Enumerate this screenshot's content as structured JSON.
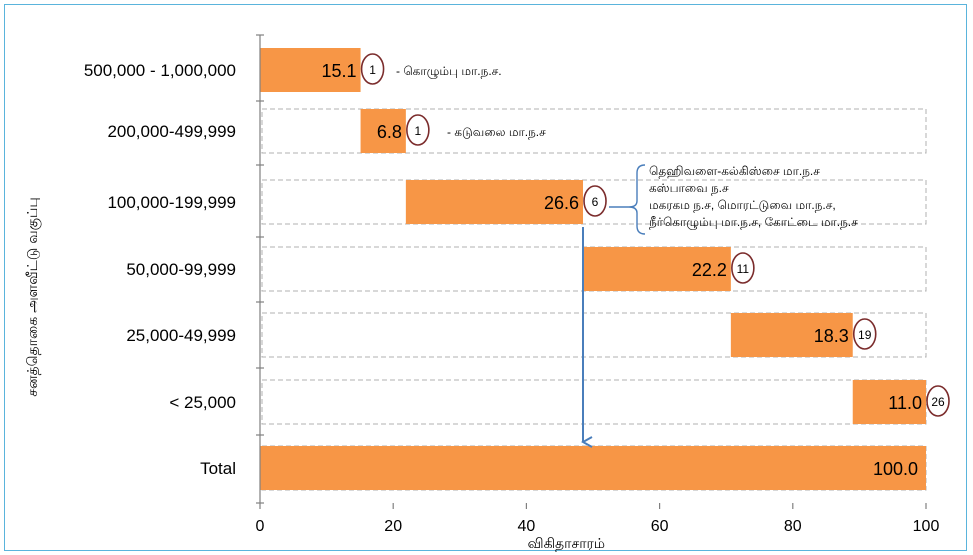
{
  "chart_data": {
    "type": "bar",
    "subtype": "waterfall-horizontal",
    "title": "",
    "xlabel": "விகிதாசாரம்",
    "ylabel": "சனத்தொகை அளவீட்டு வகுப்பு",
    "xlim": [
      0,
      100
    ],
    "xticks": [
      "0",
      "20",
      "40",
      "60",
      "80",
      "100"
    ],
    "grid": false,
    "categories": [
      "500,000 - 1,000,000",
      "200,000-499,999",
      "100,000-199,999",
      "50,000-99,999",
      "25,000-49,999",
      "< 25,000",
      "Total"
    ],
    "series": [
      {
        "values": [
          15.1,
          6.8,
          26.6,
          22.2,
          18.3,
          11.0,
          100.0
        ],
        "labels": [
          "15.1",
          "6.8",
          "26.6",
          "22.2",
          "18.3",
          "11.0",
          "100.0"
        ],
        "offsets": [
          0,
          15.1,
          21.9,
          48.5,
          70.7,
          89.0,
          0
        ],
        "counts": [
          "1",
          "1",
          "6",
          "11",
          "19",
          "26",
          ""
        ]
      }
    ],
    "annotations": [
      {
        "category": "500,000 - 1,000,000",
        "text": "- கொழும்பு மா.ந.ச."
      },
      {
        "category": "200,000-499,999",
        "text": "- கடுவலை    மா.ந.ச"
      },
      {
        "category": "100,000-199,999",
        "lines": [
          "தெஹிவளை-கல்கிஸ்சை மா.ந.ச",
          "கஸ்பாவை ந.ச",
          "மகரகம ந.ச, மொரட்டுவை மா.ந.ச,",
          "நீர்கொழும்பு மா.ந.ச, கோட்டை மா.ந.ச"
        ]
      }
    ],
    "colors": {
      "bar": "#f79646",
      "circle": "#7b2c2c",
      "arrow": "#4a7ebb",
      "frame": "#5ab4dc",
      "dash": "#b0b0b0"
    }
  }
}
